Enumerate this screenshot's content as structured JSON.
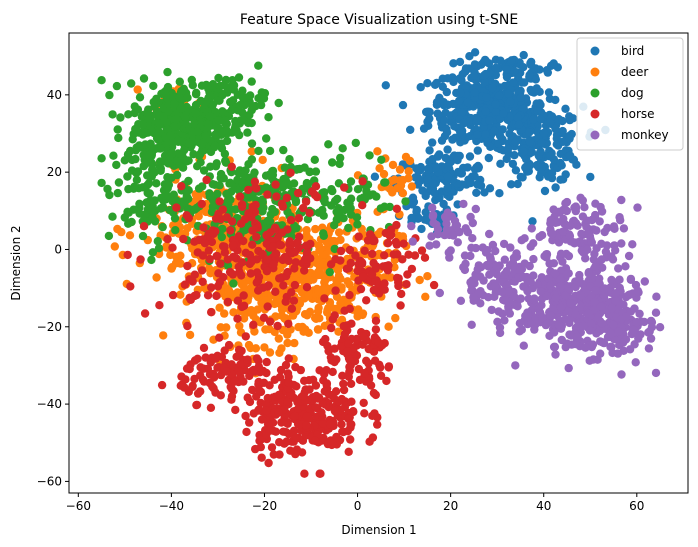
{
  "chart_data": {
    "type": "scatter",
    "title": "Feature Space Visualization using t-SNE",
    "xlabel": "Dimension 1",
    "ylabel": "Dimension 2",
    "xlim": [
      -62,
      71
    ],
    "ylim": [
      -63,
      56
    ],
    "xticks": [
      -60,
      -40,
      -20,
      0,
      20,
      40,
      60
    ],
    "yticks": [
      -60,
      -40,
      -20,
      0,
      20,
      40
    ],
    "grid": false,
    "legend_position": "top-right",
    "series": [
      {
        "name": "bird",
        "color": "#1f77b4",
        "clusters": [
          {
            "center": [
              28,
              36
            ],
            "spread": [
              9,
              8
            ],
            "count": 420
          },
          {
            "center": [
              40,
              27
            ],
            "spread": [
              6,
              7
            ],
            "count": 160
          },
          {
            "center": [
              18,
              18
            ],
            "spread": [
              7,
              5
            ],
            "count": 120
          },
          {
            "center": [
              33,
              47
            ],
            "spread": [
              6,
              2
            ],
            "count": 60
          },
          {
            "center": [
              14,
              8
            ],
            "spread": [
              4,
              3
            ],
            "count": 30
          }
        ]
      },
      {
        "name": "deer",
        "color": "#ff7f0e",
        "clusters": [
          {
            "center": [
              -18,
              -10
            ],
            "spread": [
              12,
              10
            ],
            "count": 380
          },
          {
            "center": [
              -30,
              5
            ],
            "spread": [
              12,
              10
            ],
            "count": 220
          },
          {
            "center": [
              -5,
              -5
            ],
            "spread": [
              10,
              10
            ],
            "count": 180
          },
          {
            "center": [
              -40,
              38
            ],
            "spread": [
              4,
              3
            ],
            "count": 20
          },
          {
            "center": [
              8,
              18
            ],
            "spread": [
              6,
              5
            ],
            "count": 25
          }
        ]
      },
      {
        "name": "dog",
        "color": "#2ca02c",
        "clusters": [
          {
            "center": [
              -38,
              32
            ],
            "spread": [
              8,
              8
            ],
            "count": 330
          },
          {
            "center": [
              -28,
              38
            ],
            "spread": [
              6,
              5
            ],
            "count": 90
          },
          {
            "center": [
              -45,
              15
            ],
            "spread": [
              6,
              10
            ],
            "count": 100
          },
          {
            "center": [
              -25,
              12
            ],
            "spread": [
              12,
              10
            ],
            "count": 220
          },
          {
            "center": [
              -5,
              15
            ],
            "spread": [
              10,
              8
            ],
            "count": 90
          }
        ]
      },
      {
        "name": "horse",
        "color": "#d62728",
        "clusters": [
          {
            "center": [
              -12,
              -42
            ],
            "spread": [
              9,
              8
            ],
            "count": 280
          },
          {
            "center": [
              -28,
              -32
            ],
            "spread": [
              7,
              5
            ],
            "count": 100
          },
          {
            "center": [
              0,
              -28
            ],
            "spread": [
              6,
              7
            ],
            "count": 90
          },
          {
            "center": [
              -22,
              0
            ],
            "spread": [
              14,
              12
            ],
            "count": 240
          },
          {
            "center": [
              5,
              -5
            ],
            "spread": [
              6,
              8
            ],
            "count": 70
          }
        ]
      },
      {
        "name": "monkey",
        "color": "#9467bd",
        "clusters": [
          {
            "center": [
              48,
              -15
            ],
            "spread": [
              9,
              8
            ],
            "count": 360
          },
          {
            "center": [
              32,
              -8
            ],
            "spread": [
              8,
              7
            ],
            "count": 140
          },
          {
            "center": [
              48,
              5
            ],
            "spread": [
              7,
              6
            ],
            "count": 110
          },
          {
            "center": [
              56,
              -20
            ],
            "spread": [
              5,
              6
            ],
            "count": 80
          },
          {
            "center": [
              20,
              5
            ],
            "spread": [
              5,
              5
            ],
            "count": 40
          }
        ]
      }
    ]
  }
}
